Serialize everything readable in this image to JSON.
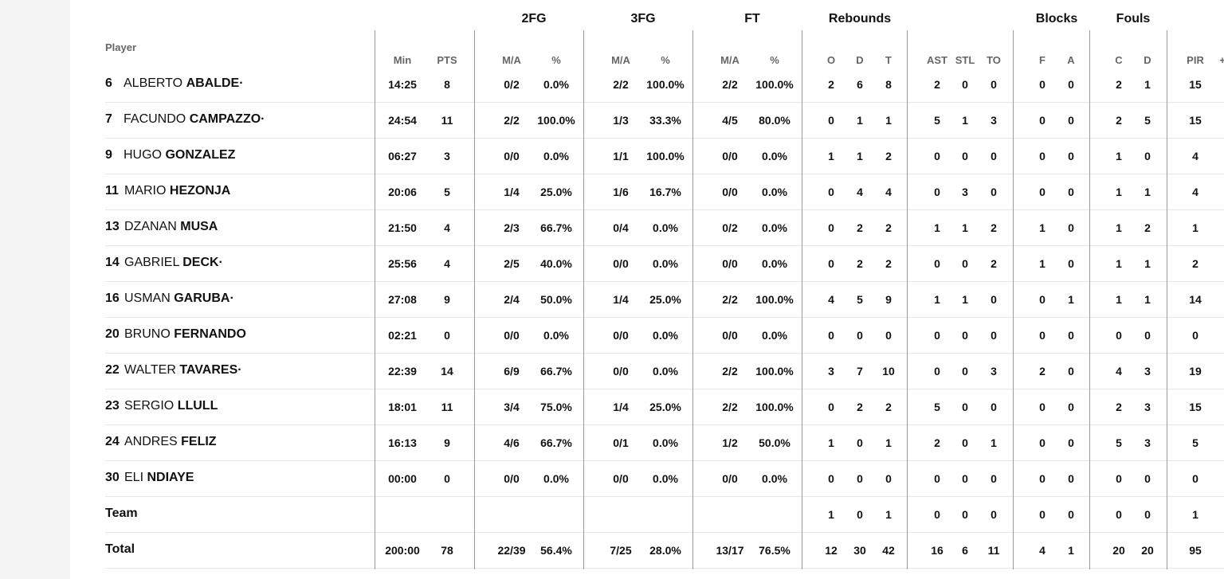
{
  "table": {
    "player_header": "Player",
    "groups": {
      "fg2": "2FG",
      "fg3": "3FG",
      "ft": "FT",
      "rebounds": "Rebounds",
      "blocks": "Blocks",
      "fouls": "Fouls"
    },
    "columns": {
      "min": "Min",
      "pts": "PTS",
      "fg2_ma": "M/A",
      "fg2_pct": "%",
      "fg3_ma": "M/A",
      "fg3_pct": "%",
      "ft_ma": "M/A",
      "ft_pct": "%",
      "reb_o": "O",
      "reb_d": "D",
      "reb_t": "T",
      "ast": "AST",
      "stl": "STL",
      "to": "TO",
      "blk_f": "F",
      "blk_a": "A",
      "foul_c": "C",
      "foul_d": "D",
      "pir": "PIR",
      "pm": "+/-"
    },
    "rows": [
      {
        "num": "6",
        "first": "ALBERTO",
        "last": "ABALDE·",
        "min": "14:25",
        "pts": "8",
        "fg2_ma": "0/2",
        "fg2_pct": "0.0%",
        "fg3_ma": "2/2",
        "fg3_pct": "100.0%",
        "ft_ma": "2/2",
        "ft_pct": "100.0%",
        "reb_o": "2",
        "reb_d": "6",
        "reb_t": "8",
        "ast": "2",
        "stl": "0",
        "to": "0",
        "blk_f": "0",
        "blk_a": "0",
        "foul_c": "2",
        "foul_d": "1",
        "pir": "15"
      },
      {
        "num": "7",
        "first": "FACUNDO",
        "last": "CAMPAZZO·",
        "min": "24:54",
        "pts": "11",
        "fg2_ma": "2/2",
        "fg2_pct": "100.0%",
        "fg3_ma": "1/3",
        "fg3_pct": "33.3%",
        "ft_ma": "4/5",
        "ft_pct": "80.0%",
        "reb_o": "0",
        "reb_d": "1",
        "reb_t": "1",
        "ast": "5",
        "stl": "1",
        "to": "3",
        "blk_f": "0",
        "blk_a": "0",
        "foul_c": "2",
        "foul_d": "5",
        "pir": "15"
      },
      {
        "num": "9",
        "first": "HUGO",
        "last": "GONZALEZ",
        "min": "06:27",
        "pts": "3",
        "fg2_ma": "0/0",
        "fg2_pct": "0.0%",
        "fg3_ma": "1/1",
        "fg3_pct": "100.0%",
        "ft_ma": "0/0",
        "ft_pct": "0.0%",
        "reb_o": "1",
        "reb_d": "1",
        "reb_t": "2",
        "ast": "0",
        "stl": "0",
        "to": "0",
        "blk_f": "0",
        "blk_a": "0",
        "foul_c": "1",
        "foul_d": "0",
        "pir": "4"
      },
      {
        "num": "11",
        "first": "MARIO",
        "last": "HEZONJA",
        "min": "20:06",
        "pts": "5",
        "fg2_ma": "1/4",
        "fg2_pct": "25.0%",
        "fg3_ma": "1/6",
        "fg3_pct": "16.7%",
        "ft_ma": "0/0",
        "ft_pct": "0.0%",
        "reb_o": "0",
        "reb_d": "4",
        "reb_t": "4",
        "ast": "0",
        "stl": "3",
        "to": "0",
        "blk_f": "0",
        "blk_a": "0",
        "foul_c": "1",
        "foul_d": "1",
        "pir": "4"
      },
      {
        "num": "13",
        "first": "DZANAN",
        "last": "MUSA",
        "min": "21:50",
        "pts": "4",
        "fg2_ma": "2/3",
        "fg2_pct": "66.7%",
        "fg3_ma": "0/4",
        "fg3_pct": "0.0%",
        "ft_ma": "0/2",
        "ft_pct": "0.0%",
        "reb_o": "0",
        "reb_d": "2",
        "reb_t": "2",
        "ast": "1",
        "stl": "1",
        "to": "2",
        "blk_f": "1",
        "blk_a": "0",
        "foul_c": "1",
        "foul_d": "2",
        "pir": "1"
      },
      {
        "num": "14",
        "first": "GABRIEL",
        "last": "DECK·",
        "min": "25:56",
        "pts": "4",
        "fg2_ma": "2/5",
        "fg2_pct": "40.0%",
        "fg3_ma": "0/0",
        "fg3_pct": "0.0%",
        "ft_ma": "0/0",
        "ft_pct": "0.0%",
        "reb_o": "0",
        "reb_d": "2",
        "reb_t": "2",
        "ast": "0",
        "stl": "0",
        "to": "2",
        "blk_f": "1",
        "blk_a": "0",
        "foul_c": "1",
        "foul_d": "1",
        "pir": "2"
      },
      {
        "num": "16",
        "first": "USMAN",
        "last": "GARUBA·",
        "min": "27:08",
        "pts": "9",
        "fg2_ma": "2/4",
        "fg2_pct": "50.0%",
        "fg3_ma": "1/4",
        "fg3_pct": "25.0%",
        "ft_ma": "2/2",
        "ft_pct": "100.0%",
        "reb_o": "4",
        "reb_d": "5",
        "reb_t": "9",
        "ast": "1",
        "stl": "1",
        "to": "0",
        "blk_f": "0",
        "blk_a": "1",
        "foul_c": "1",
        "foul_d": "1",
        "pir": "14"
      },
      {
        "num": "20",
        "first": "BRUNO",
        "last": "FERNANDO",
        "min": "02:21",
        "pts": "0",
        "fg2_ma": "0/0",
        "fg2_pct": "0.0%",
        "fg3_ma": "0/0",
        "fg3_pct": "0.0%",
        "ft_ma": "0/0",
        "ft_pct": "0.0%",
        "reb_o": "0",
        "reb_d": "0",
        "reb_t": "0",
        "ast": "0",
        "stl": "0",
        "to": "0",
        "blk_f": "0",
        "blk_a": "0",
        "foul_c": "0",
        "foul_d": "0",
        "pir": "0"
      },
      {
        "num": "22",
        "first": "WALTER",
        "last": "TAVARES·",
        "min": "22:39",
        "pts": "14",
        "fg2_ma": "6/9",
        "fg2_pct": "66.7%",
        "fg3_ma": "0/0",
        "fg3_pct": "0.0%",
        "ft_ma": "2/2",
        "ft_pct": "100.0%",
        "reb_o": "3",
        "reb_d": "7",
        "reb_t": "10",
        "ast": "0",
        "stl": "0",
        "to": "3",
        "blk_f": "2",
        "blk_a": "0",
        "foul_c": "4",
        "foul_d": "3",
        "pir": "19"
      },
      {
        "num": "23",
        "first": "SERGIO",
        "last": "LLULL",
        "min": "18:01",
        "pts": "11",
        "fg2_ma": "3/4",
        "fg2_pct": "75.0%",
        "fg3_ma": "1/4",
        "fg3_pct": "25.0%",
        "ft_ma": "2/2",
        "ft_pct": "100.0%",
        "reb_o": "0",
        "reb_d": "2",
        "reb_t": "2",
        "ast": "5",
        "stl": "0",
        "to": "0",
        "blk_f": "0",
        "blk_a": "0",
        "foul_c": "2",
        "foul_d": "3",
        "pir": "15"
      },
      {
        "num": "24",
        "first": "ANDRES",
        "last": "FELIZ",
        "min": "16:13",
        "pts": "9",
        "fg2_ma": "4/6",
        "fg2_pct": "66.7%",
        "fg3_ma": "0/1",
        "fg3_pct": "0.0%",
        "ft_ma": "1/2",
        "ft_pct": "50.0%",
        "reb_o": "1",
        "reb_d": "0",
        "reb_t": "1",
        "ast": "2",
        "stl": "0",
        "to": "1",
        "blk_f": "0",
        "blk_a": "0",
        "foul_c": "5",
        "foul_d": "3",
        "pir": "5"
      },
      {
        "num": "30",
        "first": "ELI",
        "last": "NDIAYE",
        "min": "00:00",
        "pts": "0",
        "fg2_ma": "0/0",
        "fg2_pct": "0.0%",
        "fg3_ma": "0/0",
        "fg3_pct": "0.0%",
        "ft_ma": "0/0",
        "ft_pct": "0.0%",
        "reb_o": "0",
        "reb_d": "0",
        "reb_t": "0",
        "ast": "0",
        "stl": "0",
        "to": "0",
        "blk_f": "0",
        "blk_a": "0",
        "foul_c": "0",
        "foul_d": "0",
        "pir": "0"
      }
    ],
    "team": {
      "label": "Team",
      "reb_o": "1",
      "reb_d": "0",
      "reb_t": "1",
      "ast": "0",
      "stl": "0",
      "to": "0",
      "blk_f": "0",
      "blk_a": "0",
      "foul_c": "0",
      "foul_d": "0",
      "pir": "1"
    },
    "total": {
      "label": "Total",
      "min": "200:00",
      "pts": "78",
      "fg2_ma": "22/39",
      "fg2_pct": "56.4%",
      "fg3_ma": "7/25",
      "fg3_pct": "28.0%",
      "ft_ma": "13/17",
      "ft_pct": "76.5%",
      "reb_o": "12",
      "reb_d": "30",
      "reb_t": "42",
      "ast": "16",
      "stl": "6",
      "to": "11",
      "blk_f": "4",
      "blk_a": "1",
      "foul_c": "20",
      "foul_d": "20",
      "pir": "95"
    }
  }
}
